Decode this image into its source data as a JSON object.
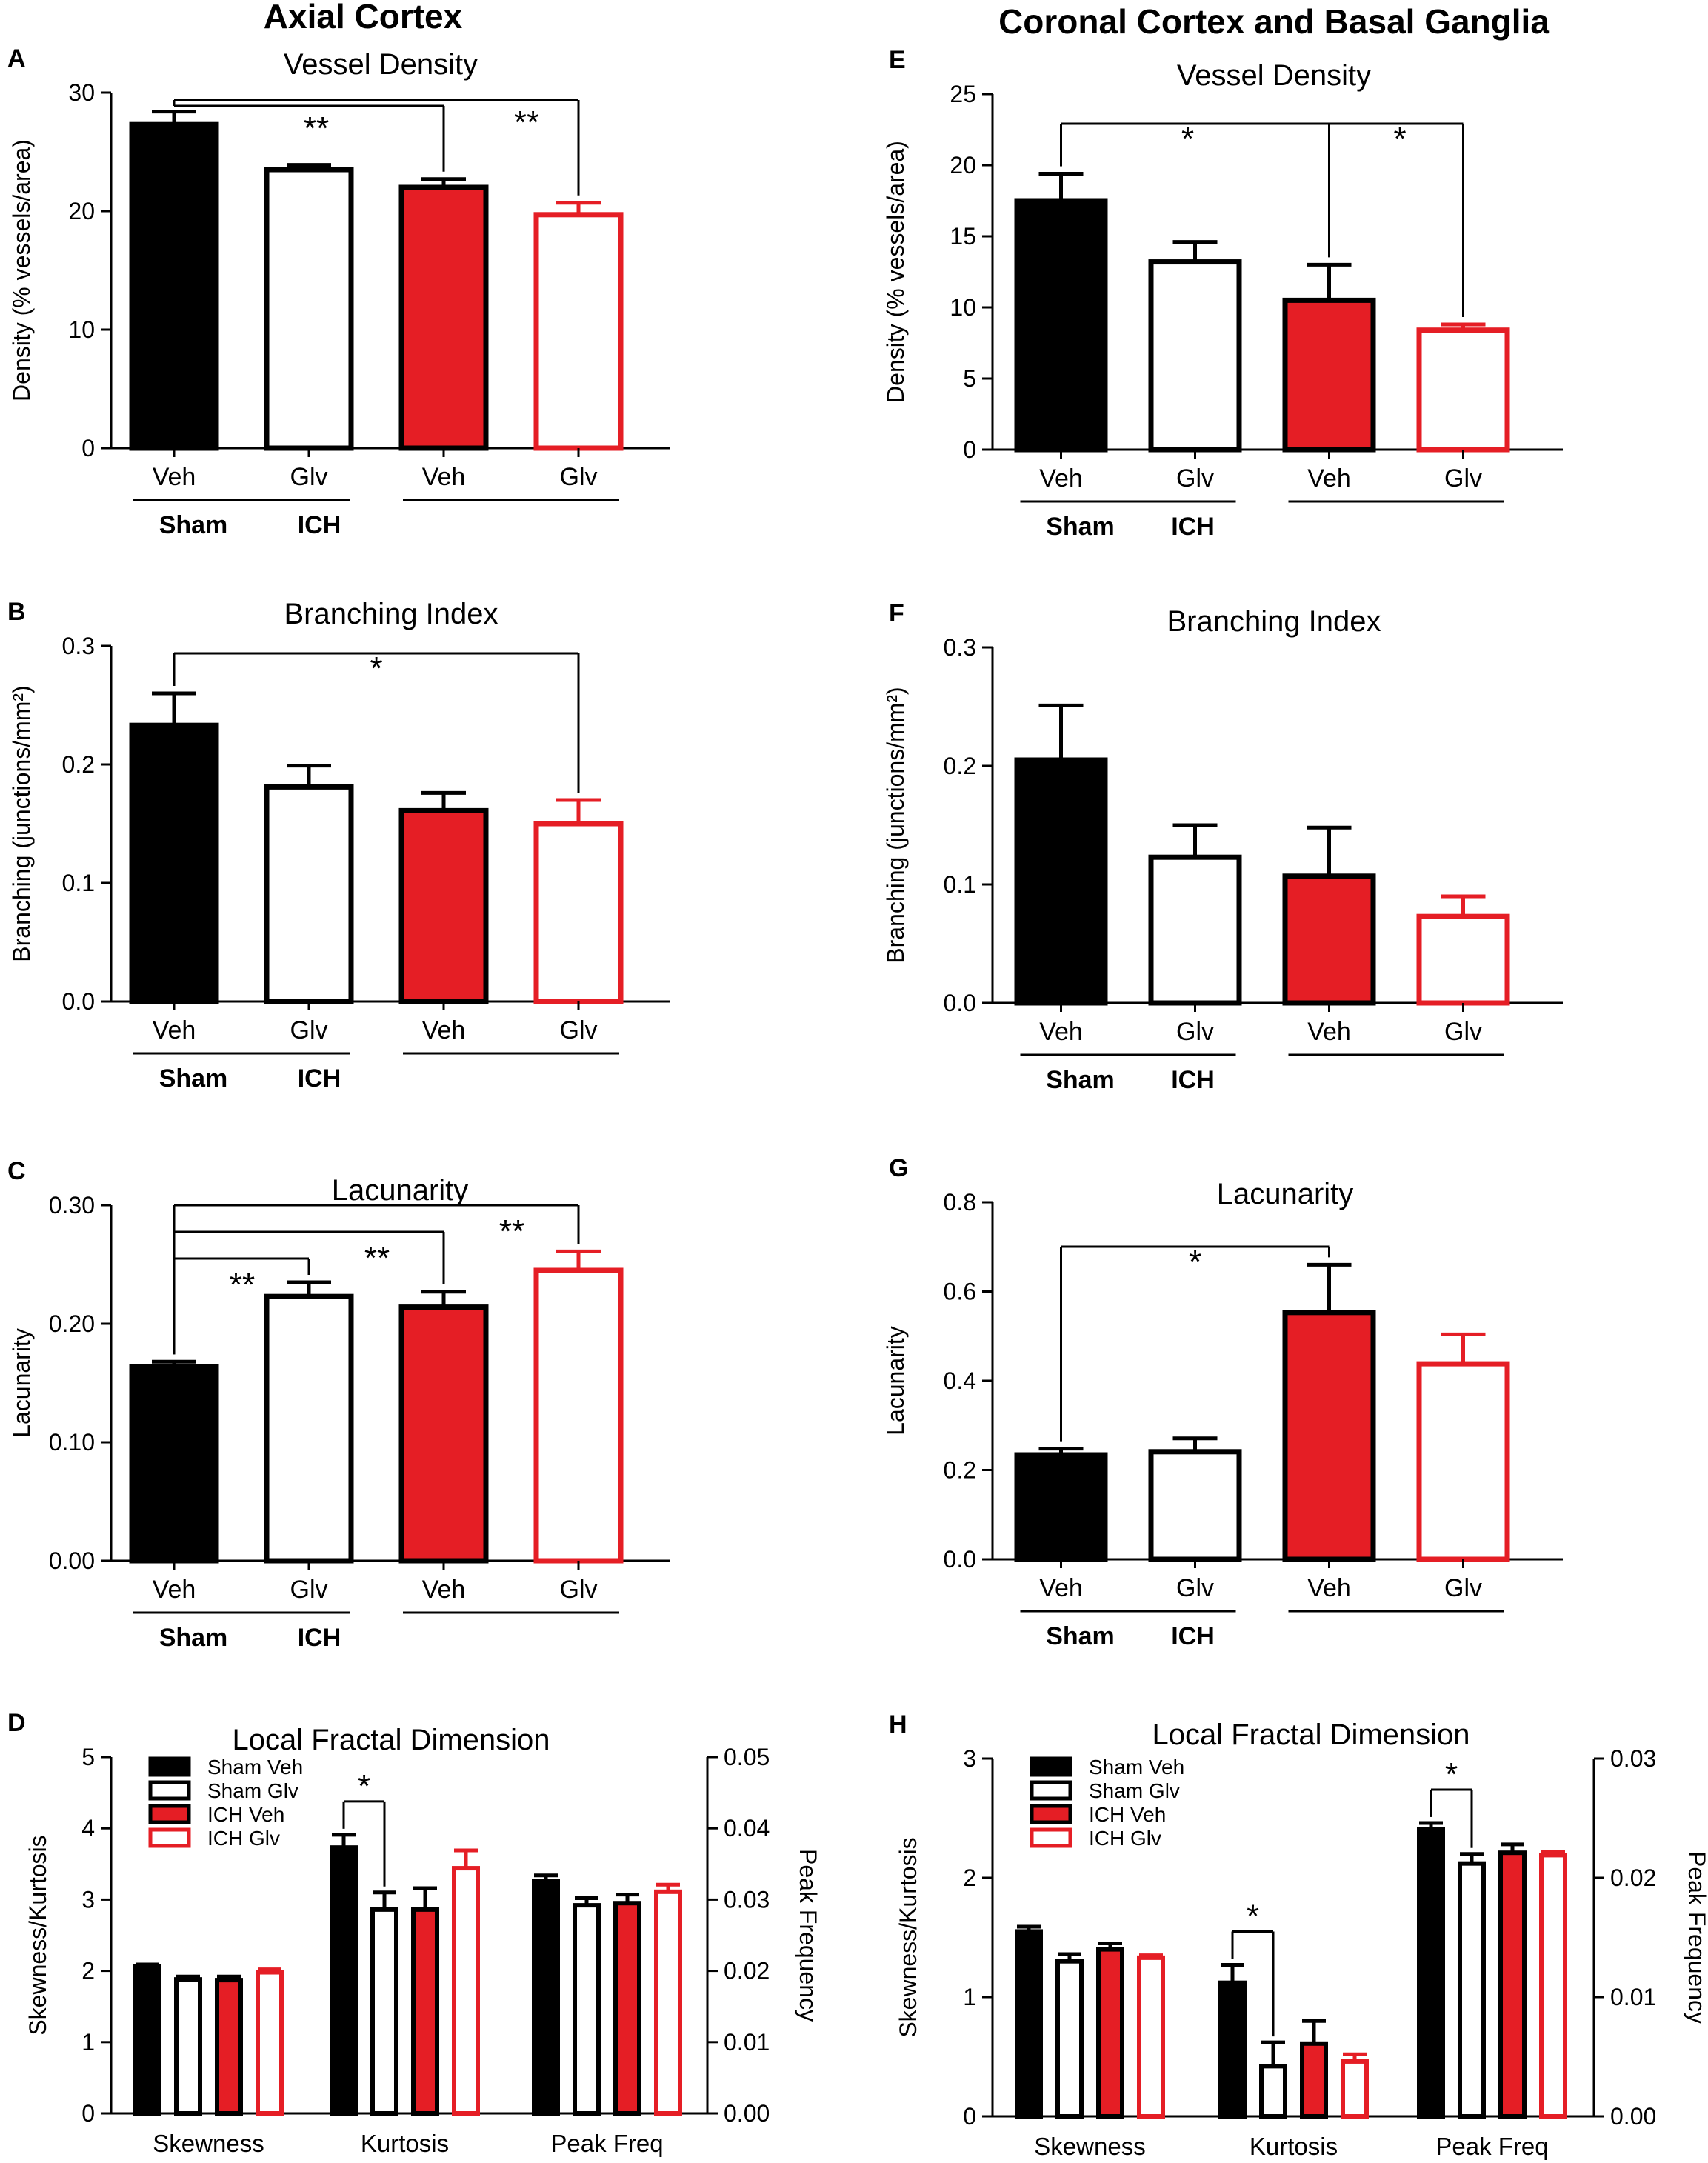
{
  "colors": {
    "black": "#000000",
    "red": "#e51e25",
    "white": "#ffffff"
  },
  "headings": {
    "left": "Axial Cortex",
    "right": "Coronal Cortex and Basal Ganglia"
  },
  "chart_data": [
    {
      "panel": "A",
      "type": "bar",
      "title": "Vessel Density",
      "ylabel": "Density (% vessels/area)",
      "ylim": [
        0,
        30
      ],
      "yticks": [
        "0",
        "10",
        "20",
        "30"
      ],
      "categories": [
        "Veh",
        "Glv",
        "Veh",
        "Glv"
      ],
      "groups": [
        "Sham",
        "ICH"
      ],
      "values": [
        27.3,
        23.5,
        22.0,
        19.7
      ],
      "errors": [
        1.1,
        0.4,
        0.7,
        1.0
      ],
      "annotations": [
        {
          "type": "bracket",
          "label": "**",
          "from": 0,
          "to": 2
        },
        {
          "type": "bracket",
          "label": "**",
          "from": 0,
          "to": 3
        }
      ]
    },
    {
      "panel": "B",
      "type": "bar",
      "title": "Branching Index",
      "ylabel": "Branching (junctions/mm²)",
      "ylim": [
        0,
        0.3
      ],
      "yticks": [
        "0.0",
        "0.1",
        "0.2",
        "0.3"
      ],
      "categories": [
        "Veh",
        "Glv",
        "Veh",
        "Glv"
      ],
      "groups": [
        "Sham",
        "ICH"
      ],
      "values": [
        0.233,
        0.181,
        0.161,
        0.15
      ],
      "errors": [
        0.027,
        0.018,
        0.015,
        0.02
      ],
      "annotations": [
        {
          "type": "bracket",
          "label": "*",
          "from": 0,
          "to": 3
        }
      ]
    },
    {
      "panel": "C",
      "type": "bar",
      "title": "Lacunarity",
      "ylabel": "Lacunarity",
      "ylim": [
        0,
        0.3
      ],
      "yticks": [
        "0.00",
        "0.10",
        "0.20",
        "0.30"
      ],
      "categories": [
        "Veh",
        "Glv",
        "Veh",
        "Glv"
      ],
      "groups": [
        "Sham",
        "ICH"
      ],
      "values": [
        0.164,
        0.223,
        0.214,
        0.245
      ],
      "errors": [
        0.004,
        0.012,
        0.013,
        0.016
      ],
      "annotations": [
        {
          "type": "bracket",
          "label": "**",
          "from": 0,
          "to": 1
        },
        {
          "type": "bracket",
          "label": "**",
          "from": 0,
          "to": 2
        },
        {
          "type": "bracket",
          "label": "**",
          "from": 0,
          "to": 3
        }
      ]
    },
    {
      "panel": "D",
      "type": "bar",
      "title": "Local Fractal Dimension",
      "ylabel": "Skewness/Kurtosis",
      "ylim": [
        0,
        5
      ],
      "yticks": [
        "0",
        "1",
        "2",
        "3",
        "4",
        "5"
      ],
      "y2label": "Peak Frequency",
      "y2lim": [
        0,
        0.05
      ],
      "y2ticks": [
        "0.00",
        "0.01",
        "0.02",
        "0.03",
        "0.04",
        "0.05"
      ],
      "categories": [
        "Skewness",
        "Kurtosis",
        "Peak Freq"
      ],
      "legend": [
        "Sham Veh",
        "Sham Glv",
        "ICH Veh",
        "ICH Glv"
      ],
      "series": [
        {
          "name": "Sham Veh",
          "values": [
            2.06,
            3.73,
            0.0326
          ],
          "errors": [
            0.03,
            0.18,
            0.0008
          ]
        },
        {
          "name": "Sham Glv",
          "values": [
            1.88,
            2.86,
            0.0292
          ],
          "errors": [
            0.04,
            0.24,
            0.001
          ]
        },
        {
          "name": "ICH Veh",
          "values": [
            1.87,
            2.86,
            0.0295
          ],
          "errors": [
            0.05,
            0.3,
            0.0012
          ]
        },
        {
          "name": "ICH Glv",
          "values": [
            1.98,
            3.44,
            0.0311
          ],
          "errors": [
            0.04,
            0.25,
            0.001
          ]
        }
      ],
      "annotations": [
        {
          "type": "bracket",
          "label": "*",
          "category": 1,
          "from": 0,
          "to": 1
        }
      ]
    },
    {
      "panel": "E",
      "type": "bar",
      "title": "Vessel Density",
      "ylabel": "Density (% vessels/area)",
      "ylim": [
        0,
        25
      ],
      "yticks": [
        "0",
        "5",
        "10",
        "15",
        "20",
        "25"
      ],
      "categories": [
        "Veh",
        "Glv",
        "Veh",
        "Glv"
      ],
      "groups": [
        "Sham",
        "ICH"
      ],
      "values": [
        17.5,
        13.2,
        10.5,
        8.4
      ],
      "errors": [
        1.9,
        1.4,
        2.5,
        0.4
      ],
      "annotations": [
        {
          "type": "bracket",
          "label": "*",
          "from": 0,
          "to": 2
        },
        {
          "type": "bracket",
          "label": "*",
          "from": 0,
          "to": 3
        }
      ]
    },
    {
      "panel": "F",
      "type": "bar",
      "title": "Branching Index",
      "ylabel": "Branching (junctions/mm²)",
      "ylim": [
        0,
        0.3
      ],
      "yticks": [
        "0.0",
        "0.1",
        "0.2",
        "0.3"
      ],
      "categories": [
        "Veh",
        "Glv",
        "Veh",
        "Glv"
      ],
      "groups": [
        "Sham",
        "ICH"
      ],
      "values": [
        0.205,
        0.123,
        0.107,
        0.073
      ],
      "errors": [
        0.046,
        0.027,
        0.041,
        0.017
      ],
      "annotations": []
    },
    {
      "panel": "G",
      "type": "bar",
      "title": "Lacunarity",
      "ylabel": "Lacunarity",
      "ylim": [
        0,
        0.8
      ],
      "yticks": [
        "0.0",
        "0.2",
        "0.4",
        "0.6",
        "0.8"
      ],
      "categories": [
        "Veh",
        "Glv",
        "Veh",
        "Glv"
      ],
      "groups": [
        "Sham",
        "ICH"
      ],
      "values": [
        0.234,
        0.241,
        0.553,
        0.438
      ],
      "errors": [
        0.014,
        0.03,
        0.107,
        0.066
      ],
      "annotations": [
        {
          "type": "bracket",
          "label": "*",
          "from": 0,
          "to": 2
        }
      ]
    },
    {
      "panel": "H",
      "type": "bar",
      "title": "Local Fractal Dimension",
      "ylabel": "Skewness/Kurtosis",
      "ylim": [
        0,
        3
      ],
      "yticks": [
        "0",
        "1",
        "2",
        "3"
      ],
      "y2label": "Peak Frequency",
      "y2lim": [
        0,
        0.03
      ],
      "y2ticks": [
        "0.00",
        "0.01",
        "0.02",
        "0.03"
      ],
      "categories": [
        "Skewness",
        "Kurtosis",
        "Peak Freq"
      ],
      "legend": [
        "Sham Veh",
        "Sham Glv",
        "ICH Veh",
        "ICH Glv"
      ],
      "series": [
        {
          "name": "Sham Veh",
          "values": [
            1.55,
            1.12,
            0.0241
          ],
          "errors": [
            0.04,
            0.15,
            0.0005
          ]
        },
        {
          "name": "Sham Glv",
          "values": [
            1.3,
            0.42,
            0.0212
          ],
          "errors": [
            0.06,
            0.2,
            0.0008
          ]
        },
        {
          "name": "ICH Veh",
          "values": [
            1.4,
            0.61,
            0.0221
          ],
          "errors": [
            0.05,
            0.19,
            0.0007
          ]
        },
        {
          "name": "ICH Glv",
          "values": [
            1.33,
            0.46,
            0.0219
          ],
          "errors": [
            0.02,
            0.06,
            0.0003
          ]
        }
      ],
      "annotations": [
        {
          "type": "bracket",
          "label": "*",
          "category": 1,
          "from": 0,
          "to": 1
        },
        {
          "type": "bracket",
          "label": "*",
          "category": 2,
          "from": 0,
          "to": 1
        }
      ]
    }
  ]
}
